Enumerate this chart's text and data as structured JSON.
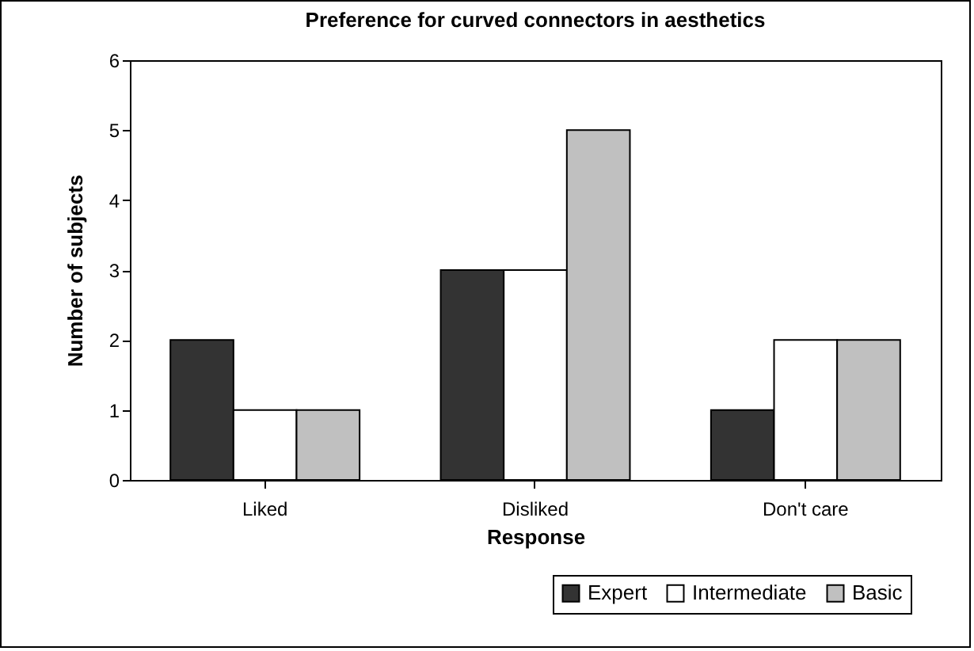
{
  "chart_data": {
    "type": "bar",
    "title": "Preference for curved connectors in aesthetics",
    "xlabel": "Response",
    "ylabel": "Number of subjects",
    "categories": [
      "Liked",
      "Disliked",
      "Don't care"
    ],
    "series": [
      {
        "name": "Expert",
        "color": "#333333",
        "values": [
          2,
          3,
          1
        ]
      },
      {
        "name": "Intermediate",
        "color": "#ffffff",
        "values": [
          1,
          3,
          2
        ]
      },
      {
        "name": "Basic",
        "color": "#c0c0c0",
        "values": [
          1,
          5,
          2
        ]
      }
    ],
    "ylim": [
      0,
      6
    ],
    "yticks": [
      0,
      1,
      2,
      3,
      4,
      5,
      6
    ],
    "grid": false,
    "legend": "bottom right"
  }
}
